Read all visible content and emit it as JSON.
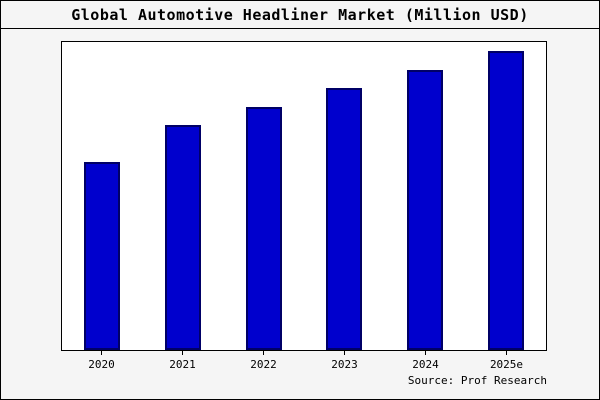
{
  "page": {
    "background": "#F5F5F5",
    "frame_border": "#000000"
  },
  "chart_data": {
    "type": "bar",
    "title": "Global Automotive Headliner Market (Million USD)",
    "categories": [
      "2020",
      "2021",
      "2022",
      "2023",
      "2024",
      "2025e"
    ],
    "values": [
      61,
      73,
      79,
      85,
      91,
      97
    ],
    "ylim": [
      0,
      100
    ],
    "xlabel": "",
    "ylabel": "",
    "grid": false,
    "legend_position": "none",
    "bar_fill": "#0000CD",
    "bar_border": "#000066",
    "plot_background": "#FFFFFF",
    "source": "Source: Prof Research"
  }
}
